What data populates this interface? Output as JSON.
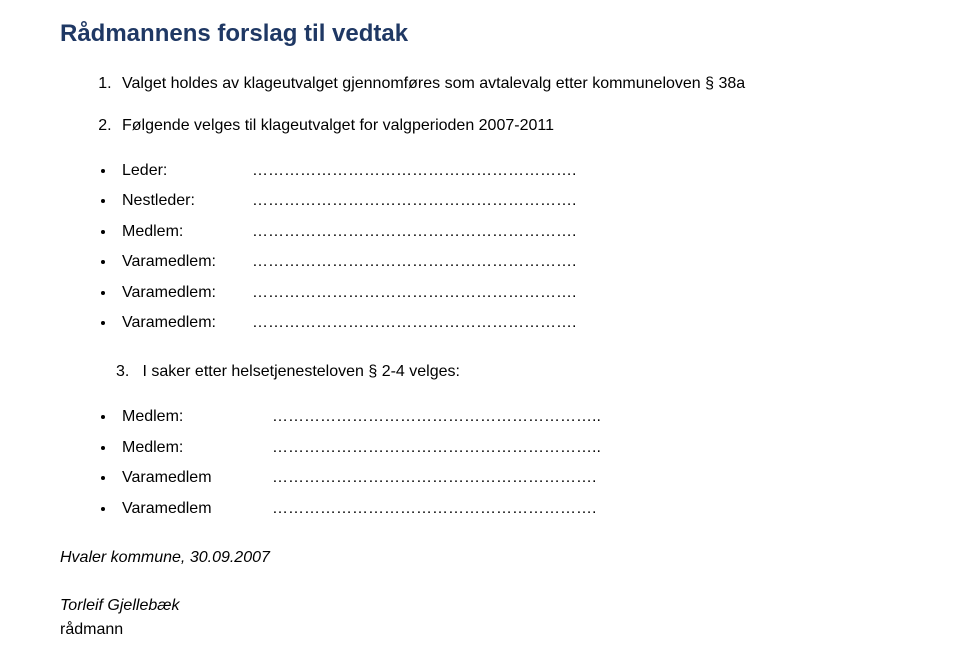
{
  "heading": "Rådmannens forslag til vedtak",
  "item1": "Valget holdes av klageutvalget gjennomføres som avtalevalg etter kommuneloven § 38a",
  "item2": "Følgende velges til klageutvalget for valgperioden 2007-2011",
  "roles_a": [
    {
      "label": "Leder:",
      "dots": "……………………………………………………."
    },
    {
      "label": "Nestleder:",
      "dots": "……………………………………………………."
    },
    {
      "label": "Medlem:",
      "dots": "……………………………………………………."
    },
    {
      "label": "Varamedlem:",
      "dots": "……………………………………………………."
    },
    {
      "label": "Varamedlem:",
      "dots": "……………………………………………………."
    },
    {
      "label": "Varamedlem:",
      "dots": "……………………………………………………."
    }
  ],
  "item3_num": "3.",
  "item3": "I saker etter helsetjenesteloven § 2-4 velges:",
  "roles_b": [
    {
      "label": "Medlem:",
      "dots": "…………………………………………………….."
    },
    {
      "label": "Medlem:",
      "dots": "…………………………………………………….."
    },
    {
      "label": "Varamedlem",
      "dots": "……………………………………………………."
    },
    {
      "label": "Varamedlem",
      "dots": "……………………………………………………."
    }
  ],
  "footer": {
    "line1": "Hvaler kommune, 30.09.2007",
    "line2": "Torleif Gjellebæk",
    "line3": "rådmann"
  },
  "colors": {
    "heading": "#1f3864",
    "text": "#000000",
    "background": "#ffffff"
  },
  "typography": {
    "heading_fontsize": 24,
    "body_fontsize": 16,
    "font_family": "Arial"
  }
}
